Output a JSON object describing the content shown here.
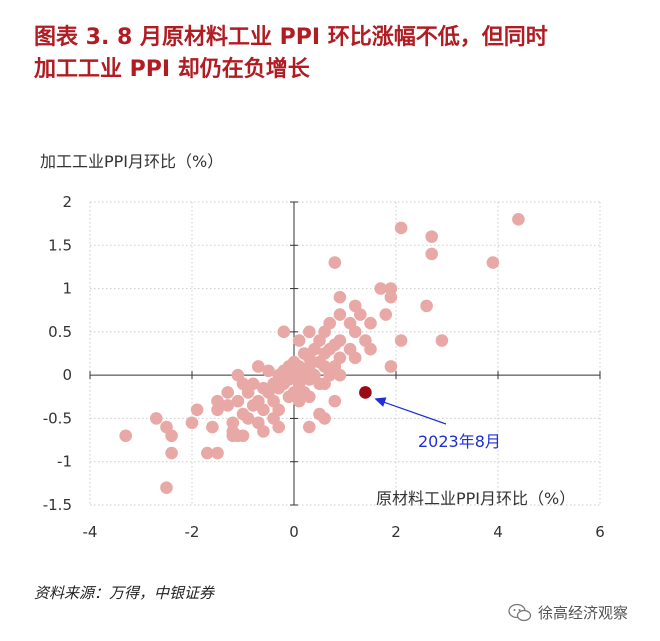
{
  "figure": {
    "title_line1": "图表 3.  8 月原材料工业 PPI 环比涨幅不低，但同时",
    "title_line2": "加工工业 PPI 却仍在负增长",
    "source": "资料来源：万得，中银证券",
    "watermark": "徐高经济观察"
  },
  "colors": {
    "points": "#e8a9a6",
    "highlight": "#9c0b14",
    "arrow": "#1e2fd6",
    "title": "#b01c22"
  },
  "chart_data": {
    "type": "scatter",
    "title": "",
    "xlabel": "原材料工业PPI月环比（%）",
    "ylabel": "加工工业PPI月环比（%）",
    "xlim": [
      -4,
      6
    ],
    "ylim": [
      -1.5,
      2
    ],
    "xticks": [
      -4,
      -2,
      0,
      2,
      4,
      6
    ],
    "yticks": [
      -1.5,
      -1,
      -0.5,
      0,
      0.5,
      1,
      1.5,
      2
    ],
    "xtick_labels": [
      "-4",
      "-2",
      "0",
      "2",
      "4",
      "6"
    ],
    "ytick_labels": [
      "-1.5",
      "-1",
      "-0.5",
      "0",
      "0.5",
      "1",
      "1.5",
      "2"
    ],
    "grid": true,
    "series": [
      {
        "points": [
          [
            4.4,
            1.8
          ],
          [
            2.1,
            1.7
          ],
          [
            2.7,
            1.6
          ],
          [
            2.7,
            1.4
          ],
          [
            3.9,
            1.3
          ],
          [
            0.8,
            1.3
          ],
          [
            1.7,
            1.0
          ],
          [
            1.9,
            1.0
          ],
          [
            1.9,
            0.9
          ],
          [
            0.9,
            0.9
          ],
          [
            2.6,
            0.8
          ],
          [
            1.2,
            0.8
          ],
          [
            1.8,
            0.7
          ],
          [
            0.9,
            0.7
          ],
          [
            1.3,
            0.7
          ],
          [
            1.1,
            0.6
          ],
          [
            1.5,
            0.6
          ],
          [
            0.7,
            0.6
          ],
          [
            0.3,
            0.5
          ],
          [
            -0.2,
            0.5
          ],
          [
            1.2,
            0.5
          ],
          [
            0.6,
            0.5
          ],
          [
            0.9,
            0.4
          ],
          [
            1.4,
            0.4
          ],
          [
            2.1,
            0.4
          ],
          [
            2.9,
            0.4
          ],
          [
            0.1,
            0.4
          ],
          [
            0.5,
            0.4
          ],
          [
            0.8,
            0.35
          ],
          [
            0.4,
            0.3
          ],
          [
            0.7,
            0.3
          ],
          [
            1.1,
            0.3
          ],
          [
            1.5,
            0.3
          ],
          [
            0.2,
            0.25
          ],
          [
            0.6,
            0.25
          ],
          [
            0.9,
            0.2
          ],
          [
            0.3,
            0.2
          ],
          [
            0.5,
            0.15
          ],
          [
            1.2,
            0.2
          ],
          [
            0.0,
            0.15
          ],
          [
            -0.1,
            0.1
          ],
          [
            0.1,
            0.1
          ],
          [
            0.3,
            0.1
          ],
          [
            0.6,
            0.1
          ],
          [
            0.8,
            0.1
          ],
          [
            1.9,
            0.1
          ],
          [
            -0.7,
            0.1
          ],
          [
            -0.5,
            0.05
          ],
          [
            -0.2,
            0.05
          ],
          [
            0.0,
            0.05
          ],
          [
            0.2,
            0.0
          ],
          [
            0.4,
            0.0
          ],
          [
            0.7,
            0.0
          ],
          [
            0.9,
            0.0
          ],
          [
            -1.1,
            0.0
          ],
          [
            -0.3,
            0.0
          ],
          [
            -0.1,
            -0.05
          ],
          [
            0.1,
            -0.05
          ],
          [
            0.3,
            -0.05
          ],
          [
            0.5,
            -0.1
          ],
          [
            -0.4,
            -0.1
          ],
          [
            -0.2,
            -0.1
          ],
          [
            0.1,
            -0.1
          ],
          [
            0.6,
            -0.1
          ],
          [
            -0.8,
            -0.1
          ],
          [
            -0.6,
            -0.15
          ],
          [
            -0.3,
            -0.15
          ],
          [
            0.0,
            -0.2
          ],
          [
            0.2,
            -0.2
          ],
          [
            -1.0,
            -0.1
          ],
          [
            -1.3,
            -0.2
          ],
          [
            -0.9,
            -0.2
          ],
          [
            -0.5,
            -0.2
          ],
          [
            -0.1,
            -0.25
          ],
          [
            0.3,
            -0.25
          ],
          [
            -1.5,
            -0.3
          ],
          [
            -1.1,
            -0.3
          ],
          [
            -0.7,
            -0.3
          ],
          [
            -0.4,
            -0.3
          ],
          [
            0.1,
            -0.3
          ],
          [
            0.8,
            -0.3
          ],
          [
            -1.3,
            -0.35
          ],
          [
            -0.8,
            -0.35
          ],
          [
            -0.6,
            -0.4
          ],
          [
            -0.3,
            -0.4
          ],
          [
            0.5,
            -0.45
          ],
          [
            -1.0,
            -0.45
          ],
          [
            -1.5,
            -0.4
          ],
          [
            -1.9,
            -0.4
          ],
          [
            -0.9,
            -0.5
          ],
          [
            -0.4,
            -0.5
          ],
          [
            0.6,
            -0.5
          ],
          [
            -1.2,
            -0.55
          ],
          [
            -0.7,
            -0.55
          ],
          [
            -2.0,
            -0.55
          ],
          [
            -2.7,
            -0.5
          ],
          [
            0.3,
            -0.6
          ],
          [
            -1.6,
            -0.6
          ],
          [
            -1.2,
            -0.65
          ],
          [
            -0.6,
            -0.65
          ],
          [
            -2.5,
            -0.6
          ],
          [
            -1.2,
            -0.7
          ],
          [
            -1.1,
            -0.7
          ],
          [
            -3.3,
            -0.7
          ],
          [
            -2.4,
            -0.7
          ],
          [
            -1.7,
            -0.9
          ],
          [
            -1.5,
            -0.9
          ],
          [
            -2.4,
            -0.9
          ],
          [
            -2.5,
            -1.3
          ],
          [
            -0.3,
            -0.6
          ],
          [
            -1.0,
            -0.7
          ]
        ]
      }
    ],
    "highlight": {
      "x": 1.4,
      "y": -0.2,
      "label": "2023年8月"
    }
  }
}
